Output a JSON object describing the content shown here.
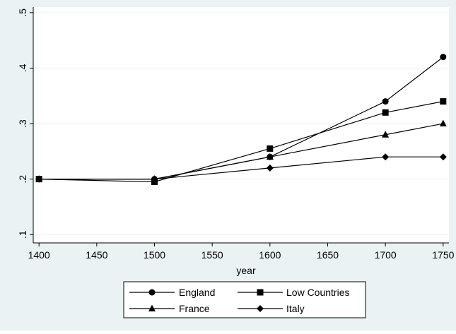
{
  "chart_data": {
    "type": "line",
    "title": "",
    "xlabel": "year",
    "ylabel": "",
    "x": [
      1400,
      1500,
      1600,
      1700,
      1750
    ],
    "xlim": [
      1395,
      1755
    ],
    "ylim": [
      0.085,
      0.51
    ],
    "x_ticks": [
      1400,
      1450,
      1500,
      1550,
      1600,
      1650,
      1700,
      1750
    ],
    "y_ticks": [
      0.1,
      0.2,
      0.3,
      0.4,
      0.5
    ],
    "y_tick_labels": [
      ".1",
      ".2",
      ".3",
      ".4",
      ".5"
    ],
    "grid": "horizontal",
    "legend_position": "bottom",
    "colors": {
      "outer_background": "#eaf2f3",
      "plot_background": "#ffffff",
      "grid": "#eaf2f3",
      "line": "#000000"
    },
    "series": [
      {
        "name": "England",
        "marker": "circle",
        "values": [
          0.2,
          0.2,
          0.24,
          0.34,
          0.42
        ]
      },
      {
        "name": "Low Countries",
        "marker": "square",
        "values": [
          0.2,
          0.195,
          0.255,
          0.32,
          0.34
        ]
      },
      {
        "name": "France",
        "marker": "triangle",
        "values": [
          0.2,
          0.2,
          0.24,
          0.28,
          0.3
        ]
      },
      {
        "name": "Italy",
        "marker": "diamond",
        "values": [
          0.2,
          0.2,
          0.22,
          0.24,
          0.24
        ]
      }
    ]
  }
}
